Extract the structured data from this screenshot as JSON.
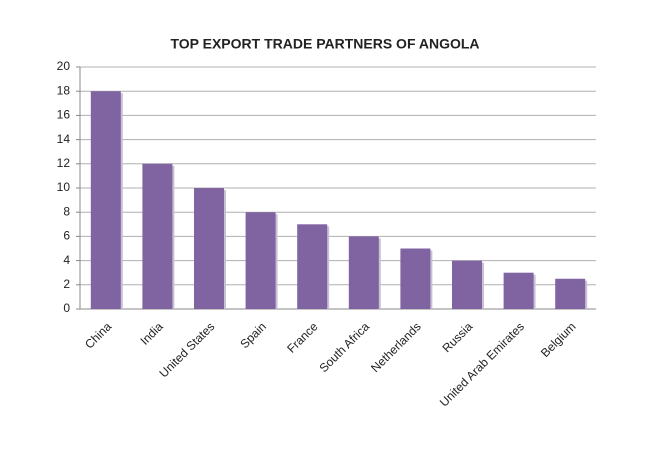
{
  "chart_data": {
    "type": "bar",
    "title": "TOP EXPORT TRADE PARTNERS OF ANGOLA",
    "categories": [
      "China",
      "India",
      "United States",
      "Spain",
      "France",
      "South Africa",
      "Netherlands",
      "Russia",
      "United Arab Emirates",
      "Belgium"
    ],
    "values": [
      18,
      12,
      10,
      8,
      7,
      6,
      5,
      4,
      3,
      2.5
    ],
    "color": "#8064a2",
    "ylim": [
      0,
      20
    ],
    "yticks": [
      0,
      2,
      4,
      6,
      8,
      10,
      12,
      14,
      16,
      18,
      20
    ],
    "grid": true
  }
}
